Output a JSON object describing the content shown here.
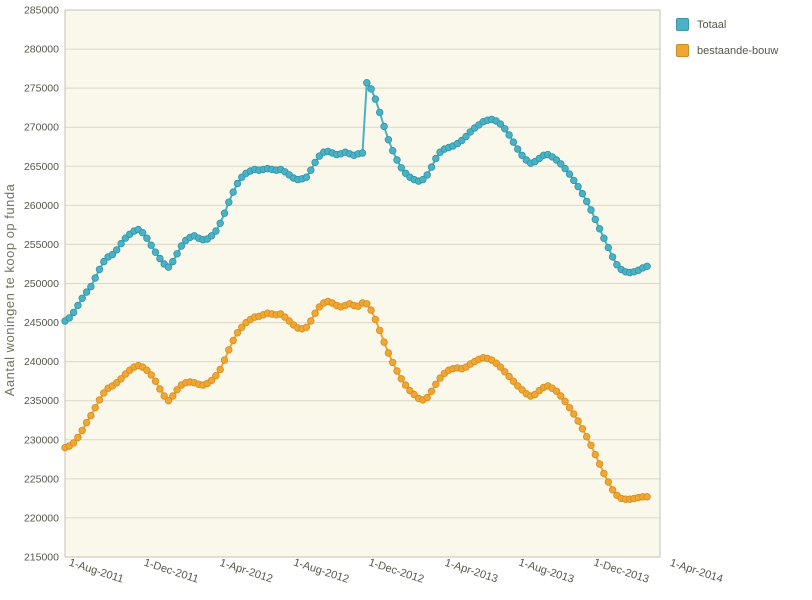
{
  "colors": {
    "page_bg": "#FFFFFF",
    "plot_bg": "#FAF7EB",
    "grid": "#DDD8C6",
    "border": "#C6C2B2",
    "tick_text": "#55584B",
    "axis_title": "#6F7460"
  },
  "chart_data": {
    "type": "line",
    "title": "",
    "xlabel": "",
    "ylabel": "Aantal woningen te koop op funda",
    "ylim": [
      215000,
      285000
    ],
    "y_ticks": [
      215000,
      220000,
      225000,
      230000,
      235000,
      240000,
      245000,
      250000,
      255000,
      260000,
      265000,
      270000,
      275000,
      280000,
      285000
    ],
    "x_tick_labels": [
      "1-Aug-2011",
      "1-Dec-2011",
      "1-Apr-2012",
      "1-Aug-2012",
      "1-Dec-2012",
      "1-Apr-2013",
      "1-Aug-2013",
      "1-Dec-2013",
      "1-Apr-2014"
    ],
    "x_tick_weeks": [
      7.0,
      24.4,
      41.8,
      59.2,
      76.6,
      94.0,
      111.4,
      128.8,
      146.2
    ],
    "x_range_weeks": [
      0,
      138
    ],
    "x_unit": "week",
    "grid": true,
    "legend_position": "top-right",
    "series": [
      {
        "name": "Totaal",
        "color": "#4AB2C4",
        "stroke": "#2F96A9",
        "values": [
          245200,
          245600,
          246300,
          247200,
          248100,
          248900,
          249600,
          250700,
          251800,
          252800,
          253400,
          253700,
          254300,
          255100,
          255800,
          256300,
          256700,
          256900,
          256500,
          255800,
          254900,
          254000,
          253200,
          252500,
          252100,
          252800,
          253800,
          254800,
          255500,
          255900,
          256100,
          255800,
          255600,
          255700,
          256100,
          256700,
          257700,
          259000,
          260400,
          261700,
          262800,
          263600,
          264100,
          264400,
          264600,
          264500,
          264600,
          264700,
          264600,
          264500,
          264600,
          264300,
          263900,
          263500,
          263300,
          263400,
          263600,
          264500,
          265500,
          266300,
          266800,
          266900,
          266700,
          266500,
          266600,
          266800,
          266600,
          266400,
          266600,
          266700,
          275700,
          274900,
          273600,
          271900,
          270100,
          268400,
          267000,
          265800,
          264800,
          264100,
          263600,
          263300,
          263100,
          263300,
          263900,
          264900,
          266000,
          266800,
          267200,
          267400,
          267600,
          267900,
          268300,
          268800,
          269400,
          269900,
          270300,
          270700,
          270900,
          271000,
          270800,
          270400,
          269800,
          269000,
          268100,
          267200,
          266400,
          265800,
          265400,
          265600,
          266000,
          266400,
          266500,
          266200,
          265800,
          265300,
          264700,
          264000,
          263200,
          262400,
          261500,
          260500,
          259400,
          258200,
          257000,
          255800,
          254600,
          253400,
          252400,
          251800,
          251500,
          251400,
          251500,
          251700,
          252000,
          252200
        ]
      },
      {
        "name": "bestaande-bouw",
        "color": "#F0A632",
        "stroke": "#D78E20",
        "values": [
          229000,
          229200,
          229600,
          230300,
          231200,
          232200,
          233100,
          234100,
          235100,
          236000,
          236600,
          236900,
          237300,
          237800,
          238400,
          238900,
          239300,
          239500,
          239300,
          238900,
          238300,
          237500,
          236500,
          235600,
          235000,
          235600,
          236400,
          237000,
          237300,
          237400,
          237300,
          237100,
          237000,
          237200,
          237600,
          238200,
          239000,
          240200,
          241500,
          242700,
          243700,
          244400,
          245000,
          245400,
          245700,
          245800,
          246000,
          246200,
          246100,
          246000,
          246100,
          245700,
          245200,
          244700,
          244300,
          244200,
          244400,
          245200,
          246200,
          247000,
          247500,
          247700,
          247500,
          247200,
          247000,
          247200,
          247400,
          247200,
          247100,
          247500,
          247400,
          246600,
          245400,
          244000,
          242500,
          241100,
          239900,
          238800,
          237800,
          237000,
          236300,
          235800,
          235300,
          235100,
          235400,
          236200,
          237100,
          237900,
          238500,
          238900,
          239100,
          239200,
          239100,
          239300,
          239700,
          240000,
          240300,
          240500,
          240400,
          240200,
          239800,
          239300,
          238700,
          238100,
          237500,
          236900,
          236400,
          235900,
          235600,
          235800,
          236300,
          236700,
          236900,
          236600,
          236200,
          235600,
          234900,
          234100,
          233300,
          232400,
          231400,
          230400,
          229300,
          228100,
          226900,
          225700,
          224600,
          223600,
          222900,
          222500,
          222400,
          222400,
          222500,
          222600,
          222700,
          222700
        ]
      }
    ]
  }
}
